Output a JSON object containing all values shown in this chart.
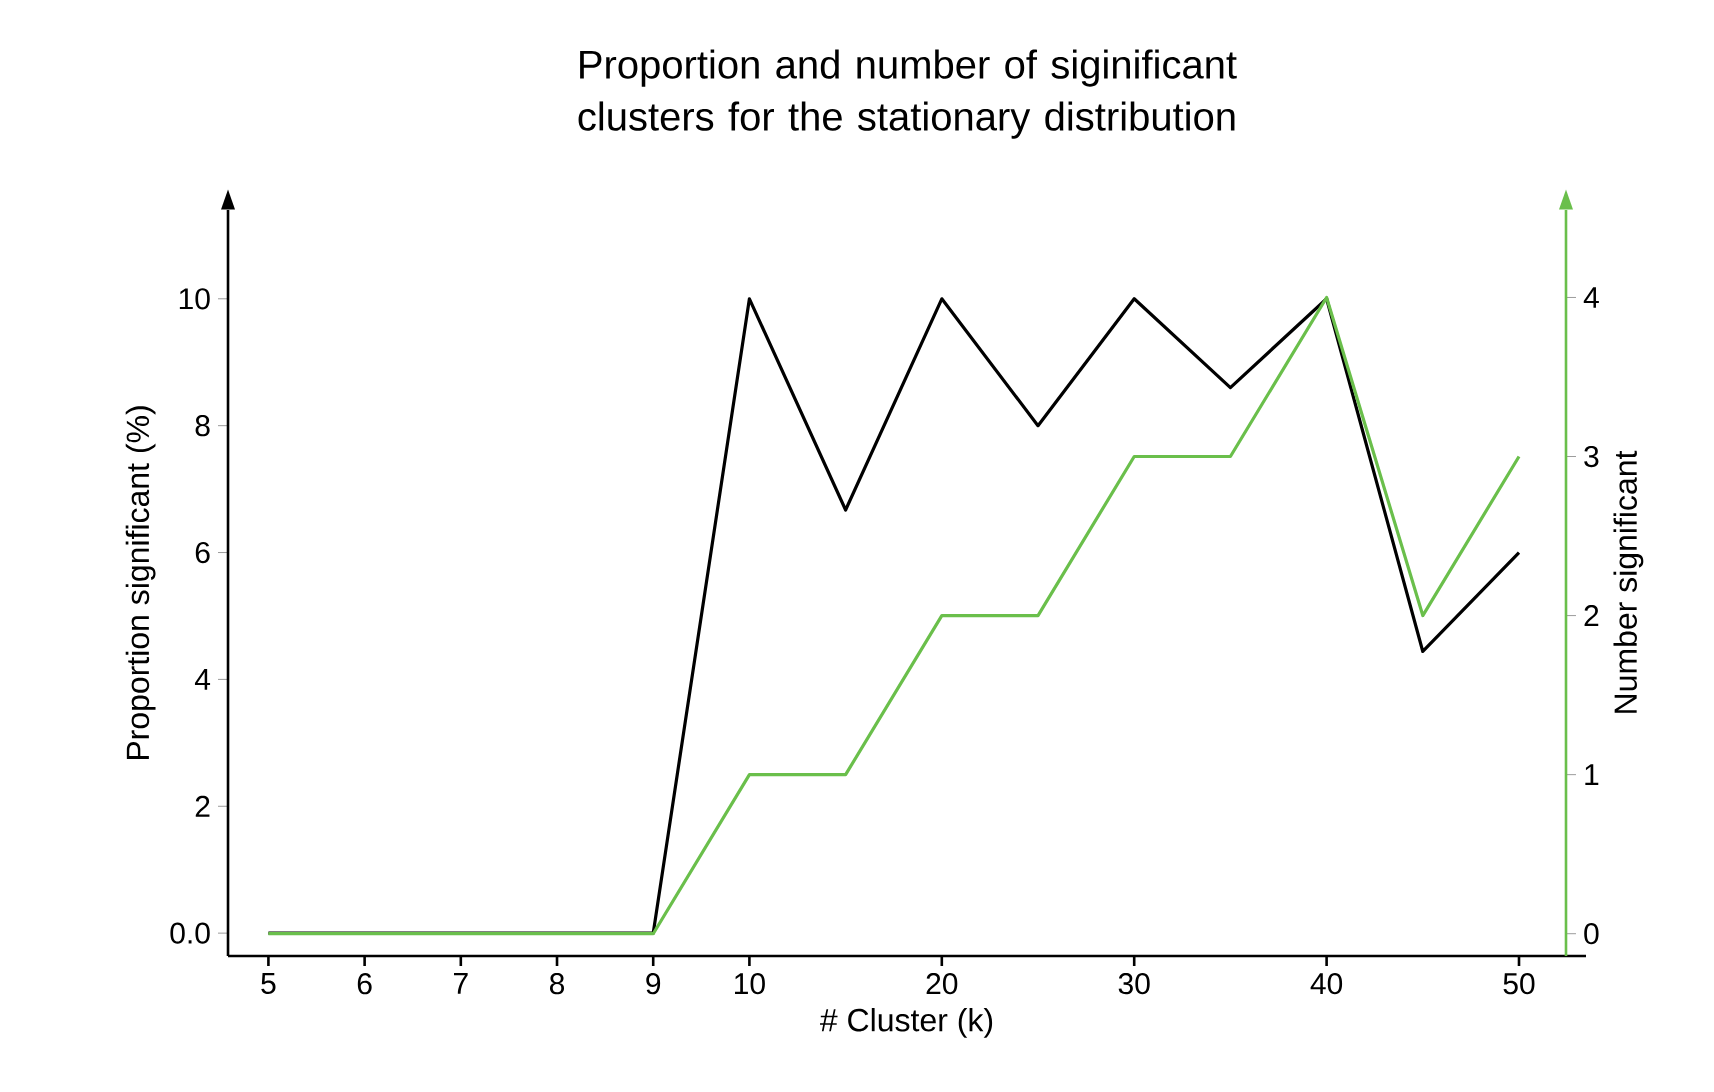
{
  "chart_data": {
    "type": "line",
    "title": "Proportion and number of siginificant clusters for the stationary distribution",
    "xlabel": "# Cluster (k)",
    "ylabel": "Proportion significant (%)",
    "y2label": "Number significant",
    "categories": [
      "5",
      "6",
      "7",
      "8",
      "9",
      "10",
      null,
      "20",
      null,
      "30",
      null,
      "40",
      null,
      "50"
    ],
    "series": [
      {
        "color": "#000000",
        "values": [
          0,
          0,
          0,
          0,
          0,
          10,
          6.67,
          10,
          8,
          10,
          8.6,
          10,
          4.44,
          6
        ]
      },
      {
        "color": "#6abf4b",
        "axis": "y2",
        "values": [
          0,
          0,
          0,
          0,
          0,
          1,
          1,
          2,
          2,
          3,
          3,
          4,
          2,
          3
        ]
      }
    ],
    "ylim": [
      -0.36,
      11.4
    ],
    "yticks": [
      {
        "value": 0,
        "label": "0.0"
      },
      2,
      4,
      6,
      8,
      10
    ],
    "y2lim": [
      -0.14,
      4.55
    ],
    "y2ticks": [
      0,
      1,
      2,
      3,
      4
    ],
    "grid": false,
    "legend": false,
    "marker": "none",
    "line_style": "solid"
  }
}
